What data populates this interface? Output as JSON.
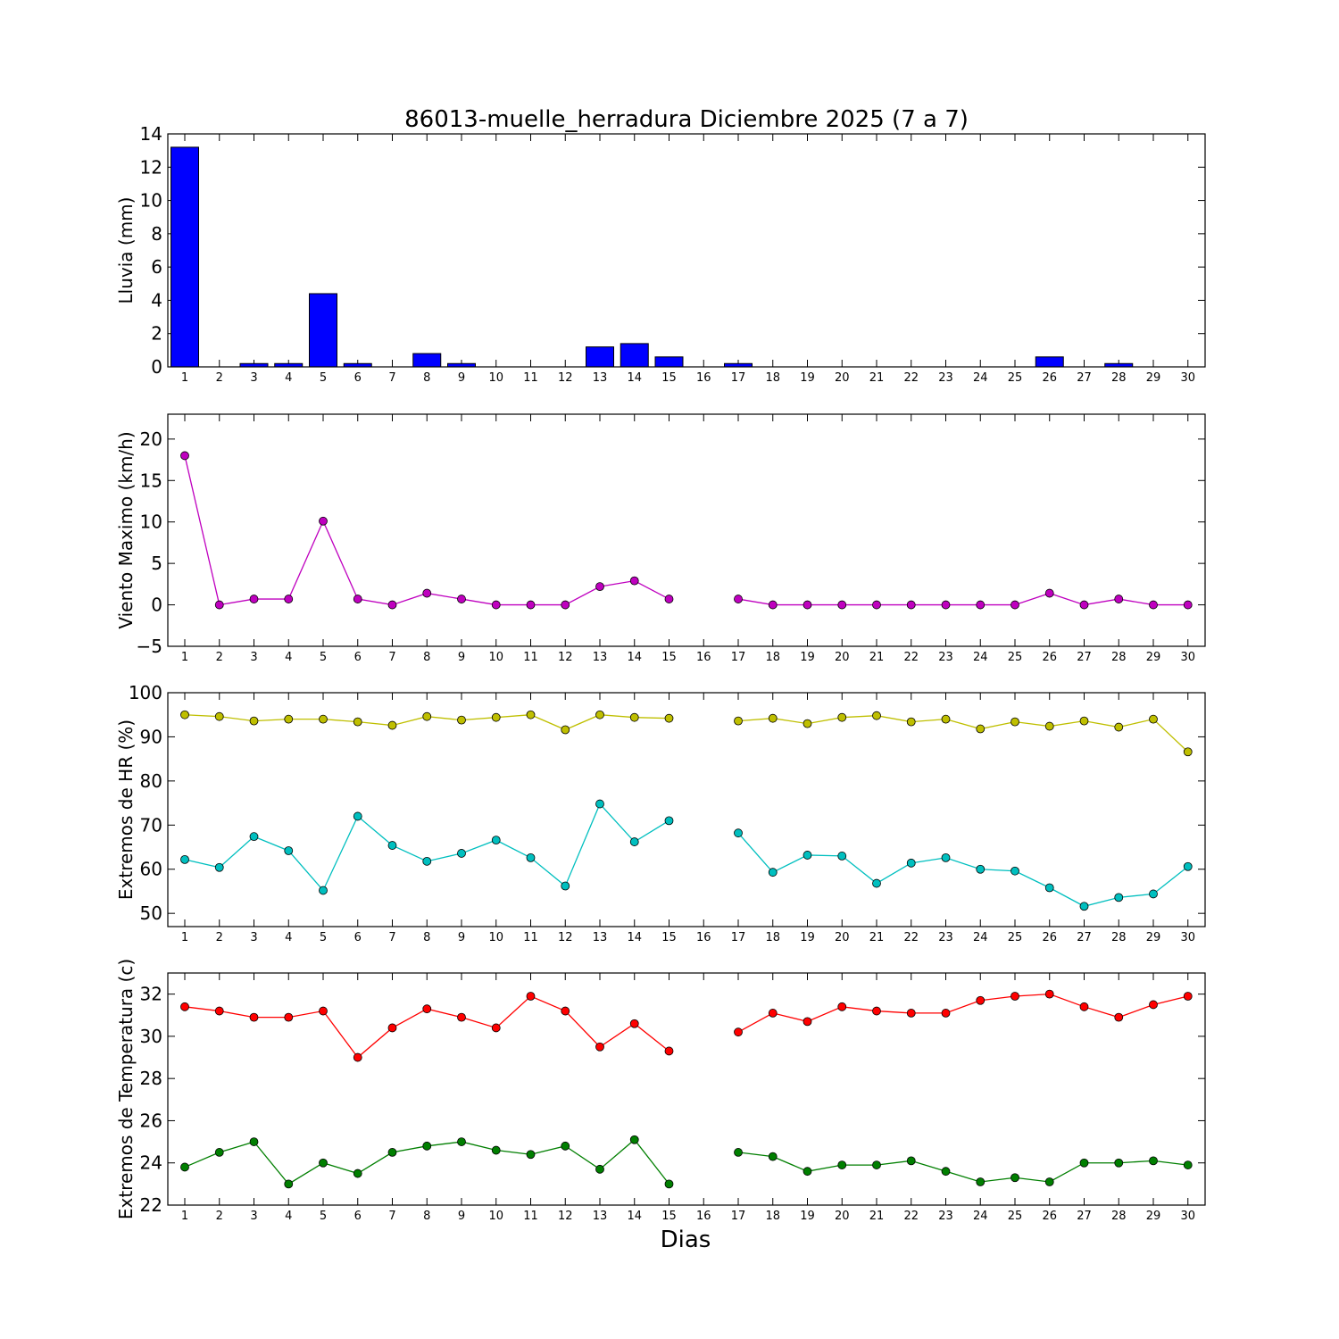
{
  "figure": {
    "title": "86013-muelle_herradura Diciembre 2025  (7 a 7)",
    "xlabel": "Dias"
  },
  "chart_data": [
    {
      "type": "bar",
      "ylabel": "Lluvia (mm)",
      "ylim": [
        0,
        14
      ],
      "yticks": [
        0,
        2,
        4,
        6,
        8,
        10,
        12,
        14
      ],
      "x": [
        1,
        2,
        3,
        4,
        5,
        6,
        7,
        8,
        9,
        10,
        11,
        12,
        13,
        14,
        15,
        16,
        17,
        18,
        19,
        20,
        21,
        22,
        23,
        24,
        25,
        26,
        27,
        28,
        29,
        30
      ],
      "series": [
        {
          "color": "#0000ff",
          "values": [
            13.2,
            0,
            0.2,
            0.2,
            4.4,
            0.2,
            0,
            0.8,
            0.2,
            0,
            0,
            0,
            1.2,
            1.4,
            0.6,
            null,
            0.2,
            0,
            0,
            0,
            0,
            0,
            0,
            0,
            0,
            0.6,
            0,
            0.2,
            0,
            0
          ]
        }
      ]
    },
    {
      "type": "line",
      "ylabel": "Viento Maximo (km/h)",
      "ylim": [
        -5,
        23
      ],
      "yticks": [
        -5,
        0,
        5,
        10,
        15,
        20
      ],
      "x": [
        1,
        2,
        3,
        4,
        5,
        6,
        7,
        8,
        9,
        10,
        11,
        12,
        13,
        14,
        15,
        16,
        17,
        18,
        19,
        20,
        21,
        22,
        23,
        24,
        25,
        26,
        27,
        28,
        29,
        30
      ],
      "series": [
        {
          "color": "#bf00bf",
          "values": [
            18,
            0,
            0.7,
            0.7,
            10.1,
            0.7,
            0,
            1.4,
            0.7,
            0,
            0,
            0,
            2.2,
            2.9,
            0.7,
            null,
            0.7,
            0,
            0,
            0,
            0,
            0,
            0,
            0,
            0,
            1.4,
            0,
            0.7,
            0,
            0
          ]
        }
      ]
    },
    {
      "type": "line",
      "ylabel": "Extremos de HR (%)",
      "ylim": [
        47,
        100
      ],
      "yticks": [
        50,
        60,
        70,
        80,
        90,
        100
      ],
      "x": [
        1,
        2,
        3,
        4,
        5,
        6,
        7,
        8,
        9,
        10,
        11,
        12,
        13,
        14,
        15,
        16,
        17,
        18,
        19,
        20,
        21,
        22,
        23,
        24,
        25,
        26,
        27,
        28,
        29,
        30
      ],
      "series": [
        {
          "color": "#bfbf00",
          "values": [
            95,
            94.6,
            93.6,
            94,
            94,
            93.4,
            92.6,
            94.6,
            93.8,
            94.4,
            95,
            91.6,
            95,
            94.4,
            94.2,
            null,
            93.6,
            94.2,
            93,
            94.4,
            94.8,
            93.4,
            94,
            91.8,
            93.4,
            92.4,
            93.6,
            92.2,
            94,
            86.6
          ]
        },
        {
          "color": "#00bfbf",
          "values": [
            62.2,
            60.4,
            67.4,
            64.2,
            55.2,
            72,
            65.4,
            61.8,
            63.6,
            66.6,
            62.6,
            56.2,
            74.8,
            66.2,
            71,
            null,
            68.2,
            59.3,
            63.2,
            63,
            56.8,
            61.4,
            62.6,
            60,
            59.6,
            55.8,
            51.6,
            53.6,
            54.4,
            60.6
          ]
        }
      ]
    },
    {
      "type": "line",
      "ylabel": "Extremos de Temperatura (c)",
      "ylim": [
        22,
        33
      ],
      "yticks": [
        22,
        24,
        26,
        28,
        30,
        32
      ],
      "x": [
        1,
        2,
        3,
        4,
        5,
        6,
        7,
        8,
        9,
        10,
        11,
        12,
        13,
        14,
        15,
        16,
        17,
        18,
        19,
        20,
        21,
        22,
        23,
        24,
        25,
        26,
        27,
        28,
        29,
        30
      ],
      "series": [
        {
          "color": "#ff0000",
          "values": [
            31.4,
            31.2,
            30.9,
            30.9,
            31.2,
            29,
            30.4,
            31.3,
            30.9,
            30.4,
            31.9,
            31.2,
            29.5,
            30.6,
            29.3,
            null,
            30.2,
            31.1,
            30.7,
            31.4,
            31.2,
            31.1,
            31.1,
            31.7,
            31.9,
            32,
            31.4,
            30.9,
            31.5,
            31.9
          ]
        },
        {
          "color": "#007f00",
          "values": [
            23.8,
            24.5,
            25,
            23,
            24,
            23.5,
            24.5,
            24.8,
            25,
            24.6,
            24.4,
            24.8,
            23.7,
            25.1,
            23,
            null,
            24.5,
            24.3,
            23.6,
            23.9,
            23.9,
            24.1,
            23.6,
            23.1,
            23.3,
            23.1,
            24,
            24,
            24.1,
            23.9
          ]
        }
      ]
    }
  ]
}
